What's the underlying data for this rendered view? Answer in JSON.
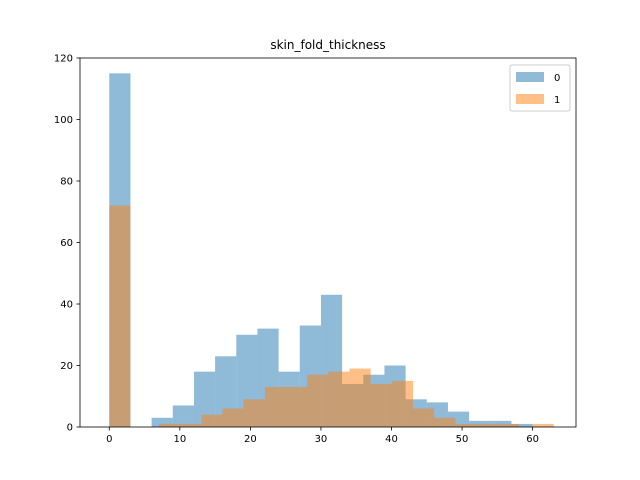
{
  "chart_data": {
    "type": "bar",
    "title": "skin_fold_thickness",
    "xlabel": "",
    "ylabel": "",
    "xlim": [
      -4.15,
      66.15
    ],
    "ylim": [
      0,
      120
    ],
    "xticks": [
      0,
      10,
      20,
      30,
      40,
      50,
      60
    ],
    "yticks": [
      0,
      20,
      40,
      60,
      80,
      100,
      120
    ],
    "grid": false,
    "legend_position": "top-right",
    "colors": {
      "series0": "#1f77b4",
      "series1": "#ff7f0e"
    },
    "bar_alpha": 0.5,
    "series": [
      {
        "name": "0",
        "bins": [
          [
            0,
            3,
            115
          ],
          [
            6,
            9,
            3
          ],
          [
            9,
            12,
            7
          ],
          [
            12,
            15,
            18
          ],
          [
            15,
            18,
            23
          ],
          [
            18,
            21,
            30
          ],
          [
            21,
            24,
            32
          ],
          [
            24,
            27,
            18
          ],
          [
            27,
            30,
            33
          ],
          [
            30,
            33,
            43
          ],
          [
            33,
            36,
            14
          ],
          [
            36,
            39,
            17
          ],
          [
            39,
            42,
            20
          ],
          [
            42,
            45,
            9
          ],
          [
            45,
            48,
            8
          ],
          [
            48,
            51,
            5
          ],
          [
            51,
            54,
            2
          ],
          [
            54,
            57,
            2
          ],
          [
            57,
            60,
            1
          ]
        ]
      },
      {
        "name": "1",
        "bins": [
          [
            0,
            3,
            72
          ],
          [
            7.05,
            10.05,
            1
          ],
          [
            10.05,
            13.05,
            1
          ],
          [
            13.05,
            16.05,
            4
          ],
          [
            16.05,
            19.05,
            6
          ],
          [
            19.05,
            22.05,
            9
          ],
          [
            22.05,
            25.05,
            13
          ],
          [
            25.05,
            28.05,
            13
          ],
          [
            28.05,
            31.05,
            17
          ],
          [
            31.05,
            34.05,
            18
          ],
          [
            34.05,
            37.05,
            19
          ],
          [
            37.05,
            40.05,
            14
          ],
          [
            40.05,
            43.05,
            15
          ],
          [
            43.05,
            46.05,
            6
          ],
          [
            46.05,
            49.05,
            3
          ],
          [
            49.05,
            52.05,
            1
          ],
          [
            52.05,
            55.05,
            1
          ],
          [
            55.05,
            58.05,
            1
          ],
          [
            60,
            63,
            1
          ]
        ]
      }
    ]
  }
}
